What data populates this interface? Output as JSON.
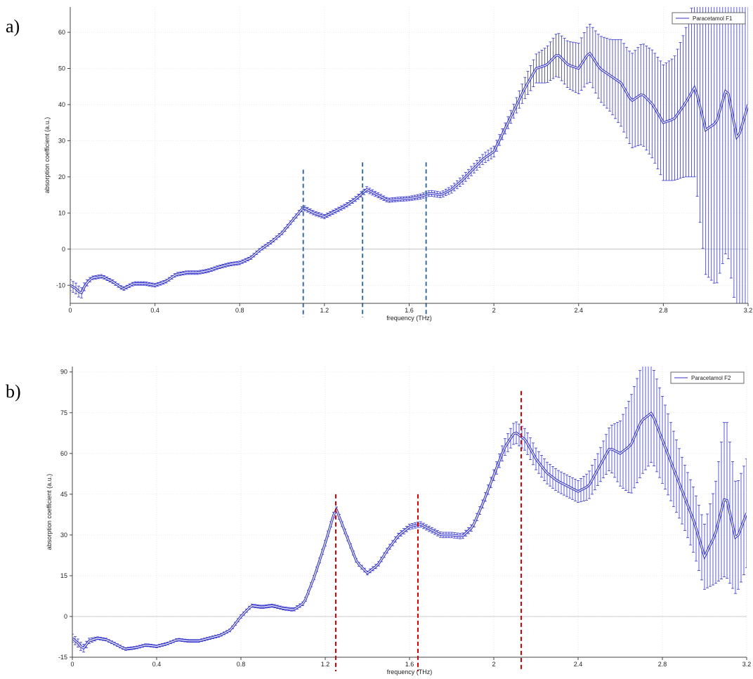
{
  "chart_data": [
    {
      "panel_label": "a)",
      "type": "line",
      "xlabel": "frequency (THz)",
      "ylabel": "absorption coefficient (a.u.)",
      "xlim": [
        0,
        3.2
      ],
      "ylim": [
        -15,
        67
      ],
      "xticks": [
        0,
        0.4,
        0.8,
        1.2,
        1.6,
        2,
        2.4,
        2.8,
        3.2
      ],
      "xtick_labels": [
        "0",
        "0.4",
        "0.8",
        "1.2",
        "1.6",
        "2",
        "2.4",
        "2.8",
        "3.2"
      ],
      "yticks": [
        -10,
        0,
        10,
        20,
        30,
        40,
        50,
        60
      ],
      "ytick_labels": [
        "-10",
        "0",
        "10",
        "20",
        "30",
        "40",
        "50",
        "60"
      ],
      "grid": true,
      "legend_position": "top-right",
      "series": [
        {
          "name": "Paracetamol F1",
          "color": "#3333cc",
          "error_bars": true,
          "x": [
            0,
            0.03,
            0.05,
            0.07,
            0.1,
            0.15,
            0.2,
            0.25,
            0.3,
            0.35,
            0.4,
            0.45,
            0.5,
            0.55,
            0.6,
            0.65,
            0.7,
            0.75,
            0.8,
            0.85,
            0.9,
            0.95,
            1.0,
            1.05,
            1.1,
            1.15,
            1.2,
            1.25,
            1.3,
            1.35,
            1.4,
            1.45,
            1.5,
            1.55,
            1.6,
            1.65,
            1.7,
            1.75,
            1.8,
            1.85,
            1.9,
            1.95,
            2.0,
            2.05,
            2.1,
            2.15,
            2.2,
            2.25,
            2.3,
            2.35,
            2.4,
            2.45,
            2.5,
            2.55,
            2.6,
            2.65,
            2.7,
            2.75,
            2.8,
            2.85,
            2.9,
            2.95,
            3.0,
            3.05,
            3.1,
            3.15,
            3.2
          ],
          "y": [
            -10,
            -11,
            -12.5,
            -10,
            -8,
            -7.5,
            -9,
            -11,
            -9.5,
            -9.5,
            -10,
            -9,
            -7,
            -6.5,
            -6.5,
            -6,
            -5,
            -4.2,
            -3.8,
            -2.5,
            0,
            2,
            4.5,
            8,
            11.5,
            10,
            9,
            10.5,
            12,
            14,
            16.5,
            15,
            13.5,
            13.8,
            14,
            14.5,
            15.5,
            15,
            16.5,
            19,
            22,
            25,
            27,
            33,
            39,
            45,
            50,
            51,
            54,
            51,
            50,
            54.5,
            50,
            48,
            46,
            41,
            43,
            40,
            35,
            36,
            40,
            45,
            33,
            35,
            45,
            30,
            40
          ],
          "err": [
            1.5,
            1.5,
            1.5,
            1,
            0.5,
            0.5,
            0.5,
            0.5,
            0.5,
            0.5,
            0.5,
            0.5,
            0.5,
            0.5,
            0.5,
            0.5,
            0.5,
            0.5,
            0.5,
            0.5,
            0.5,
            0.5,
            0.5,
            0.5,
            0.7,
            0.6,
            0.6,
            0.6,
            0.6,
            0.7,
            0.8,
            0.7,
            0.6,
            0.6,
            0.6,
            0.7,
            0.8,
            0.8,
            1,
            1.2,
            1.3,
            1.4,
            1.5,
            1.5,
            2,
            3,
            4,
            5,
            6,
            6.5,
            7,
            8,
            9,
            10,
            12,
            13,
            14,
            15,
            16,
            17,
            20,
            25,
            40,
            45,
            45,
            50,
            55
          ]
        }
      ],
      "vlines": [
        {
          "x": 1.1,
          "y_top": 22,
          "color": "#3a6ea5"
        },
        {
          "x": 1.38,
          "y_top": 24,
          "color": "#3a6ea5"
        },
        {
          "x": 1.68,
          "y_top": 24,
          "color": "#3a6ea5"
        }
      ]
    },
    {
      "panel_label": "b)",
      "type": "line",
      "xlabel": "frequency (THz)",
      "ylabel": "absorption coefficient (a.u.)",
      "xlim": [
        0,
        3.2
      ],
      "ylim": [
        -15,
        92
      ],
      "xticks": [
        0,
        0.4,
        0.8,
        1.2,
        1.6,
        2,
        2.4,
        2.8,
        3.2
      ],
      "xtick_labels": [
        "0",
        "0.4",
        "0.8",
        "1.2",
        "1.6",
        "2",
        "2.4",
        "2.8",
        "3.2"
      ],
      "yticks": [
        -15,
        0,
        15,
        30,
        45,
        60,
        75,
        90
      ],
      "ytick_labels": [
        "-15",
        "0",
        "15",
        "30",
        "45",
        "60",
        "75",
        "90"
      ],
      "grid": true,
      "legend_position": "top-right",
      "series": [
        {
          "name": "Paracetamol F2",
          "color": "#3333cc",
          "error_bars": true,
          "x": [
            0,
            0.03,
            0.05,
            0.08,
            0.12,
            0.16,
            0.2,
            0.25,
            0.3,
            0.35,
            0.4,
            0.45,
            0.5,
            0.55,
            0.6,
            0.65,
            0.7,
            0.75,
            0.8,
            0.85,
            0.9,
            0.95,
            1.0,
            1.05,
            1.1,
            1.15,
            1.2,
            1.25,
            1.3,
            1.35,
            1.4,
            1.45,
            1.5,
            1.55,
            1.6,
            1.65,
            1.7,
            1.75,
            1.8,
            1.85,
            1.9,
            1.95,
            2.0,
            2.05,
            2.1,
            2.15,
            2.2,
            2.25,
            2.3,
            2.35,
            2.4,
            2.45,
            2.5,
            2.55,
            2.6,
            2.65,
            2.7,
            2.75,
            2.8,
            2.85,
            2.9,
            2.95,
            3.0,
            3.05,
            3.1,
            3.15,
            3.2
          ],
          "y": [
            -8,
            -10,
            -12,
            -9,
            -8,
            -8.5,
            -10,
            -12,
            -11.5,
            -10.5,
            -11,
            -10,
            -8.5,
            -9,
            -9,
            -8,
            -7,
            -5,
            0,
            4,
            3.5,
            4,
            3,
            2.5,
            5,
            15,
            27,
            40,
            30,
            20,
            16,
            19,
            25,
            30,
            33,
            34,
            32,
            30,
            30,
            29.5,
            33,
            42,
            52,
            62,
            68,
            65,
            58,
            53,
            50,
            48,
            46,
            48,
            55,
            62,
            60,
            63,
            72,
            75,
            65,
            55,
            45,
            35,
            22,
            30,
            45,
            28,
            38
          ],
          "err": [
            1.5,
            1.5,
            1.5,
            1,
            0.5,
            0.5,
            0.5,
            0.5,
            0.5,
            0.5,
            0.5,
            0.5,
            0.5,
            0.5,
            0.5,
            0.5,
            0.5,
            0.5,
            0.6,
            0.6,
            0.6,
            0.6,
            0.6,
            0.6,
            0.7,
            0.8,
            1,
            1,
            0.8,
            0.7,
            0.7,
            0.8,
            0.9,
            1,
            1,
            1,
            1,
            1,
            1,
            1,
            1.2,
            1.5,
            2,
            3,
            4,
            4,
            4,
            4,
            4,
            4,
            4,
            5,
            6,
            8,
            12,
            18,
            20,
            18,
            16,
            14,
            12,
            12,
            12,
            18,
            30,
            20,
            20
          ]
        }
      ],
      "vlines": [
        {
          "x": 1.25,
          "y_top": 45,
          "color": "#dd0000"
        },
        {
          "x": 1.64,
          "y_top": 45,
          "color": "#dd0000"
        },
        {
          "x": 2.13,
          "y_top": 83,
          "color": "#dd0000"
        }
      ]
    }
  ]
}
